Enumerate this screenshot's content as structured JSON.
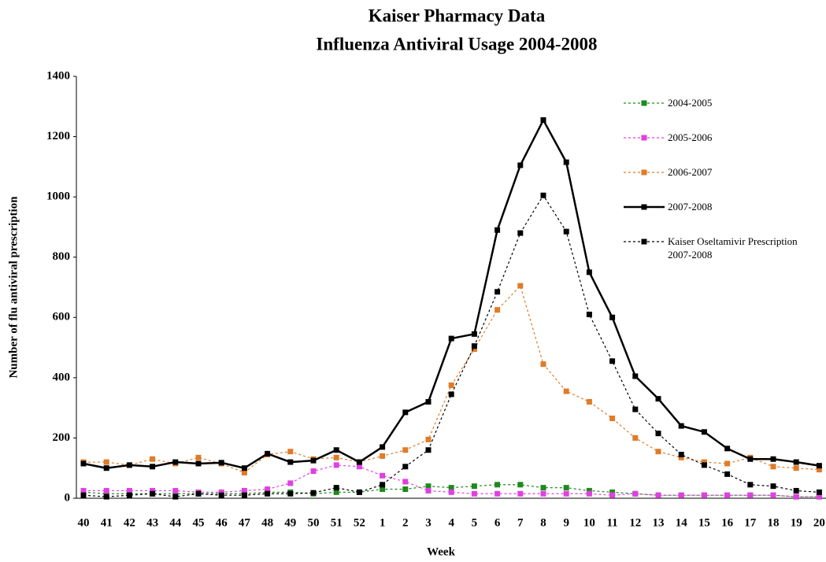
{
  "chart_data": {
    "type": "line",
    "title": "Kaiser Pharmacy Data",
    "subtitle": "Influenza Antiviral Usage 2004-2008",
    "y_label": "Number of flu antiviral prescription",
    "x_label": "Week",
    "categories": [
      "40",
      "41",
      "42",
      "43",
      "44",
      "45",
      "46",
      "47",
      "48",
      "49",
      "50",
      "51",
      "52",
      "1",
      "2",
      "3",
      "4",
      "5",
      "6",
      "7",
      "8",
      "9",
      "10",
      "11",
      "12",
      "13",
      "14",
      "15",
      "16",
      "17",
      "18",
      "19",
      "20"
    ],
    "series": [
      {
        "name": "2004-2005",
        "color": "#1e8a1e",
        "dash": true,
        "values": [
          20,
          15,
          15,
          15,
          15,
          15,
          15,
          15,
          20,
          20,
          15,
          20,
          20,
          30,
          30,
          40,
          35,
          40,
          45,
          45,
          35,
          35,
          25,
          20,
          15,
          10,
          10,
          10,
          10,
          10,
          10,
          5,
          5
        ]
      },
      {
        "name": "2005-2006",
        "color": "#e040e0",
        "dash": true,
        "values": [
          25,
          25,
          25,
          25,
          25,
          20,
          20,
          25,
          30,
          50,
          90,
          110,
          105,
          75,
          55,
          25,
          20,
          15,
          15,
          15,
          15,
          15,
          15,
          10,
          15,
          10,
          10,
          10,
          10,
          10,
          10,
          5,
          5
        ]
      },
      {
        "name": "2006-2007",
        "color": "#e07b28",
        "dash": true,
        "values": [
          120,
          120,
          110,
          130,
          115,
          135,
          115,
          85,
          145,
          155,
          130,
          135,
          120,
          140,
          160,
          195,
          375,
          495,
          625,
          705,
          445,
          355,
          320,
          265,
          200,
          155,
          135,
          120,
          115,
          135,
          105,
          100,
          95
        ]
      },
      {
        "name": "2007-2008",
        "color": "#000000",
        "dash": false,
        "values": [
          115,
          100,
          110,
          105,
          120,
          115,
          118,
          100,
          148,
          120,
          125,
          160,
          120,
          170,
          285,
          320,
          530,
          545,
          890,
          1105,
          1255,
          1115,
          750,
          600,
          405,
          330,
          240,
          220,
          165,
          130,
          130,
          120,
          108
        ]
      },
      {
        "name": "Kaiser Oseltamivir Prescription 2007-2008",
        "color": "#000000",
        "dash": true,
        "values": [
          10,
          5,
          10,
          15,
          5,
          15,
          10,
          10,
          15,
          15,
          18,
          35,
          20,
          45,
          105,
          160,
          345,
          505,
          685,
          880,
          1005,
          885,
          610,
          455,
          295,
          215,
          145,
          110,
          80,
          45,
          40,
          25,
          20
        ]
      }
    ],
    "ylim": [
      0,
      1400
    ],
    "yticks": [
      0,
      200,
      400,
      600,
      800,
      1000,
      1200,
      1400
    ],
    "grid": false
  }
}
